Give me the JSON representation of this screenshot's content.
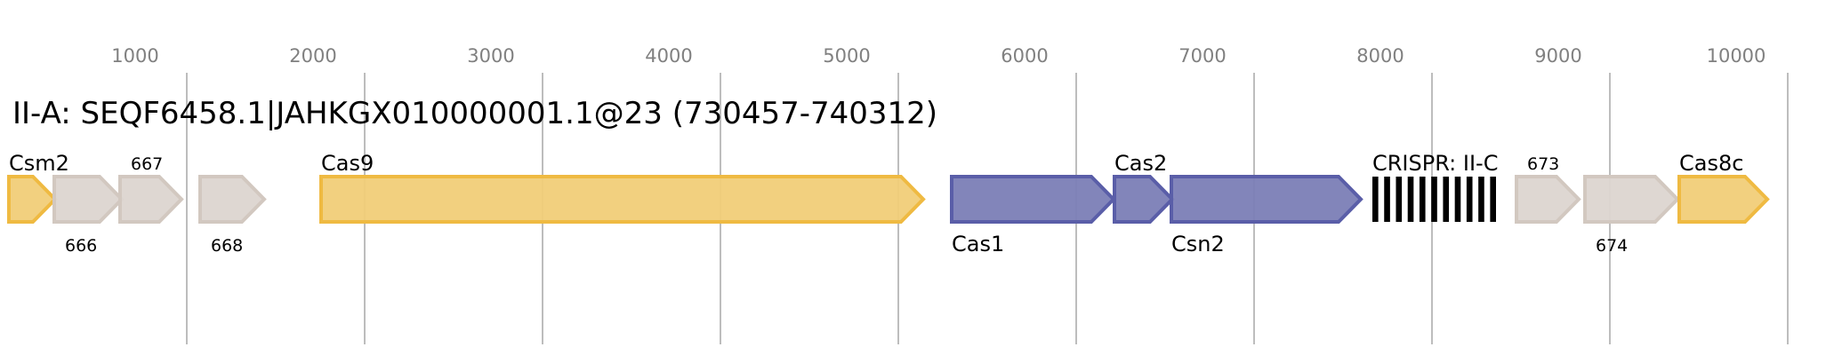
{
  "title": "II-A: SEQF6458.1|JAHKGX010000001.1@23 (730457-740312)",
  "axis": {
    "ticks": [
      1000,
      2000,
      3000,
      4000,
      5000,
      6000,
      7000,
      8000,
      9000,
      10000
    ],
    "range": [
      0,
      10000
    ]
  },
  "colors": {
    "cas_yellow": {
      "fill": "#f1cd78",
      "stroke": "#efba42"
    },
    "cas_blue": {
      "fill": "#7b7eb6",
      "stroke": "#5a5ea8"
    },
    "other": {
      "fill": "#dcd5d0",
      "stroke": "#d2c8c0"
    }
  },
  "genes": [
    {
      "label": "Csm2",
      "start": 0,
      "end": 260,
      "color": "cas_yellow",
      "label_pos": "above",
      "label_style": "gene"
    },
    {
      "label": "666",
      "start": 255,
      "end": 635,
      "color": "other",
      "label_pos": "below",
      "label_style": "number"
    },
    {
      "label": "667",
      "start": 625,
      "end": 970,
      "color": "other",
      "label_pos": "above",
      "label_style": "number"
    },
    {
      "label": "668",
      "start": 1075,
      "end": 1435,
      "color": "other",
      "label_pos": "below",
      "label_style": "number"
    },
    {
      "label": "Cas9",
      "start": 1755,
      "end": 5140,
      "color": "cas_yellow",
      "label_pos": "above",
      "label_style": "gene"
    },
    {
      "label": "Cas1",
      "start": 5300,
      "end": 6210,
      "color": "cas_blue",
      "label_pos": "below",
      "label_style": "gene"
    },
    {
      "label": "Cas2",
      "start": 6215,
      "end": 6540,
      "color": "cas_blue",
      "label_pos": "above",
      "label_style": "gene"
    },
    {
      "label": "Csn2",
      "start": 6535,
      "end": 7600,
      "color": "cas_blue",
      "label_pos": "below",
      "label_style": "gene"
    },
    {
      "label": "673",
      "start": 8475,
      "end": 8825,
      "color": "other",
      "label_pos": "above",
      "label_style": "number"
    },
    {
      "label": "674",
      "start": 8860,
      "end": 9380,
      "color": "other",
      "label_pos": "below",
      "label_style": "number"
    },
    {
      "label": "Cas8c",
      "start": 9390,
      "end": 9885,
      "color": "cas_yellow",
      "label_pos": "above",
      "label_style": "gene"
    }
  ],
  "crispr": {
    "label": "CRISPR: II-C",
    "start": 7665,
    "end": 8360,
    "repeats": 11
  }
}
